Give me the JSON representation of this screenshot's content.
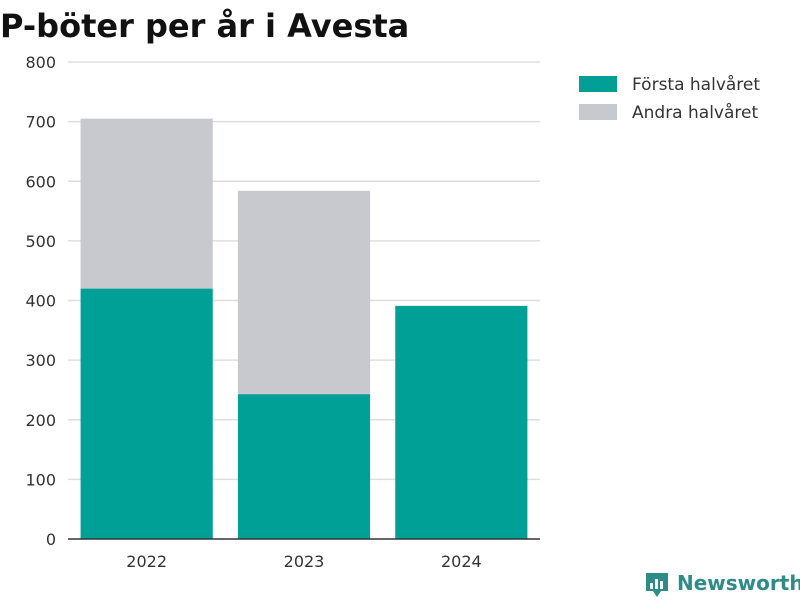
{
  "chart_data": {
    "type": "bar",
    "stacked": true,
    "title": "P-böter per år i Avesta",
    "xlabel": "",
    "ylabel": "",
    "categories": [
      "2022",
      "2023",
      "2024"
    ],
    "series": [
      {
        "name": "Första halvåret",
        "values": [
          420,
          243,
          391
        ],
        "color": "#00a096"
      },
      {
        "name": "Andra halvåret",
        "values": [
          285,
          341,
          0
        ],
        "color": "#c8c8cf"
      }
    ],
    "ylim": [
      0,
      800
    ],
    "yticks": [
      0,
      100,
      200,
      300,
      400,
      500,
      600,
      700,
      800
    ],
    "grid": true,
    "legend": "top-right"
  },
  "brand": {
    "name": "Newsworthy",
    "logo_icon": "bar-chart-badge-icon",
    "color": "#2e8b85"
  }
}
